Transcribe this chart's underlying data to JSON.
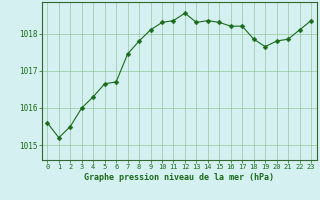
{
  "x": [
    0,
    1,
    2,
    3,
    4,
    5,
    6,
    7,
    8,
    9,
    10,
    11,
    12,
    13,
    14,
    15,
    16,
    17,
    18,
    19,
    20,
    21,
    22,
    23
  ],
  "y": [
    1015.6,
    1015.2,
    1015.5,
    1016.0,
    1016.3,
    1016.65,
    1016.7,
    1017.45,
    1017.8,
    1018.1,
    1018.3,
    1018.35,
    1018.55,
    1018.3,
    1018.35,
    1018.3,
    1018.2,
    1018.2,
    1017.85,
    1017.65,
    1017.8,
    1017.85,
    1018.1,
    1018.35
  ],
  "line_color": "#1a6b1a",
  "marker": "D",
  "marker_size": 2.5,
  "bg_color": "#d4f0f0",
  "grid_color": "#88bb88",
  "axis_color": "#1a6b1a",
  "spine_color": "#336633",
  "ylabel_ticks": [
    1015,
    1016,
    1017,
    1018
  ],
  "xlabel_label": "Graphe pression niveau de la mer (hPa)",
  "xlabel_color": "#1a6b1a",
  "ylim": [
    1014.6,
    1018.85
  ],
  "xlim": [
    -0.5,
    23.5
  ]
}
